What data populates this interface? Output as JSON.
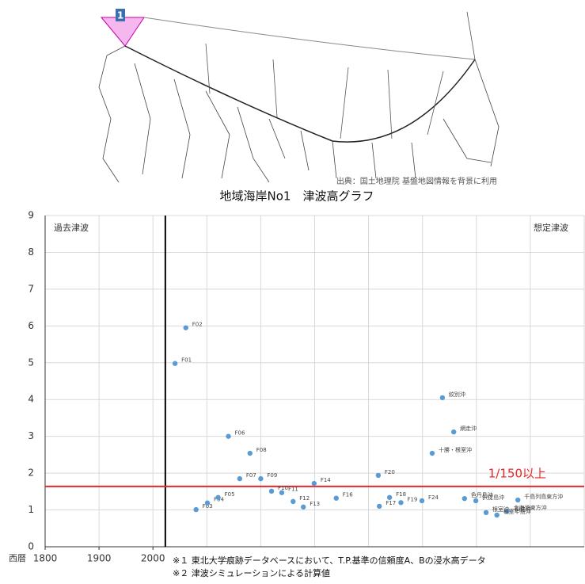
{
  "map": {
    "area_label": "1",
    "source": "出典：国土地理院 基盤地図情報を背景に利用"
  },
  "chart_data": {
    "type": "scatter",
    "title": "地域海岸No1　津波高グラフ",
    "x_prefix": "西暦",
    "xlim": [
      1800,
      2800
    ],
    "xticks": [
      1800,
      1900,
      2000
    ],
    "xgrid": [
      1800,
      1900,
      2000,
      2100,
      2200,
      2300,
      2400,
      2500,
      2600,
      2700,
      2800
    ],
    "ylim": [
      0,
      9
    ],
    "yticks": [
      0,
      1,
      2,
      3,
      4,
      5,
      6,
      7,
      8,
      9
    ],
    "grid": true,
    "past_label": "過去津波",
    "future_label": "想定津波",
    "divider": {
      "value": 2023,
      "color": "#000000"
    },
    "threshold": {
      "value": 1.64,
      "label": "1/150以上",
      "color": "#e8282b"
    },
    "series": [
      {
        "color": "#5b9bd5",
        "x": [
          2041,
          2061,
          2080,
          2101,
          2121,
          2140,
          2161,
          2180,
          2200,
          2220,
          2239,
          2260,
          2279,
          2299,
          2340,
          2420,
          2439,
          2460,
          2418,
          2499,
          2537,
          2558,
          2518,
          2578,
          2599,
          2618,
          2657,
          2638,
          2677
        ],
        "values": [
          4.98,
          5.95,
          1.01,
          1.19,
          1.34,
          3.0,
          1.85,
          2.54,
          1.85,
          1.51,
          1.47,
          1.23,
          1.08,
          1.72,
          1.32,
          1.1,
          1.34,
          1.2,
          1.94,
          1.25,
          4.05,
          3.12,
          2.54,
          1.31,
          1.25,
          0.93,
          0.97,
          0.86,
          1.27
        ],
        "point_labels": [
          "F01",
          "F02",
          "F03",
          "F04",
          "F05",
          "F06",
          "F07",
          "F08",
          "F09",
          "F10",
          "F11",
          "F12",
          "F13",
          "F14",
          "F16",
          "F17",
          "F18",
          "F19",
          "F20",
          "F24",
          "紋別沖",
          "網走沖",
          "十勝・根室沖",
          "色丹島沖",
          "択捉島沖",
          "根室沖・釧路沖",
          "北海道東方沖",
          "根室半島沖",
          "千島列島東方沖"
        ]
      }
    ],
    "notes": [
      "※１ 東北大学痕跡データベースにおいて、T.P.基準の信頼度A、Bの浸水高データ",
      "※２ 津波シミュレーションによる計算値"
    ]
  }
}
